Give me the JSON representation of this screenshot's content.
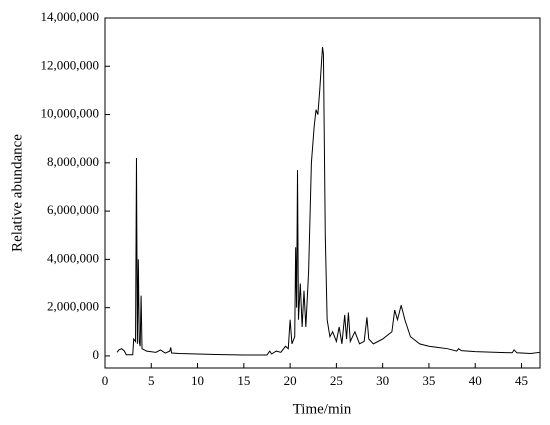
{
  "chart_data": {
    "type": "line",
    "xlabel": "Time/min",
    "ylabel": "Relative abundance",
    "color": "#000000",
    "x": [
      1.3,
      1.5,
      1.8,
      2.1,
      2.3,
      3.0,
      3.1,
      3.3,
      3.4,
      3.5,
      3.6,
      3.7,
      3.8,
      3.9,
      4.0,
      4.5,
      5.5,
      6,
      6.5,
      7,
      7.1,
      7.2,
      8,
      10,
      12,
      15,
      17.5,
      17.8,
      18,
      18.5,
      19,
      19.5,
      19.8,
      20,
      20.2,
      20.5,
      20.6,
      20.7,
      20.8,
      20.9,
      21.1,
      21.3,
      21.5,
      21.7,
      22,
      22.3,
      22.6,
      22.8,
      23,
      23.2,
      23.5,
      23.6,
      23.8,
      24,
      24.3,
      24.6,
      25,
      25.3,
      25.6,
      25.9,
      26.1,
      26.3,
      26.5,
      27,
      27.5,
      28,
      28.3,
      28.5,
      29,
      30,
      31,
      31.3,
      31.6,
      32,
      32.4,
      33,
      34,
      35,
      36,
      37,
      38,
      38.2,
      38.5,
      40,
      42,
      44,
      44.2,
      44.5,
      46,
      47
    ],
    "values": [
      150000,
      250000,
      300000,
      200000,
      50000,
      50000,
      700000,
      600000,
      8200000,
      500000,
      4000000,
      600000,
      400000,
      2500000,
      300000,
      200000,
      150000,
      250000,
      120000,
      200000,
      350000,
      120000,
      100000,
      80000,
      60000,
      40000,
      40000,
      200000,
      80000,
      200000,
      150000,
      400000,
      300000,
      1500000,
      500000,
      800000,
      4500000,
      2000000,
      7700000,
      1500000,
      3000000,
      1200000,
      2700000,
      1200000,
      3500000,
      8000000,
      9500000,
      10200000,
      10000000,
      11000000,
      12800000,
      12500000,
      5000000,
      1500000,
      800000,
      1000000,
      600000,
      1200000,
      500000,
      1700000,
      700000,
      1800000,
      600000,
      1000000,
      500000,
      600000,
      1600000,
      700000,
      500000,
      700000,
      1000000,
      1900000,
      1500000,
      2100000,
      1500000,
      800000,
      500000,
      400000,
      350000,
      300000,
      200000,
      300000,
      220000,
      180000,
      150000,
      130000,
      250000,
      130000,
      100000,
      150000
    ],
    "xlim": [
      0,
      47
    ],
    "xticks": [
      0,
      5,
      10,
      15,
      20,
      25,
      30,
      35,
      40,
      45
    ],
    "ylim": [
      -500000,
      14000000
    ],
    "yticks": [
      0,
      {
        "value": 2000000,
        "label": "2,000,000"
      },
      {
        "value": 4000000,
        "label": "4,000,000"
      },
      {
        "value": 6000000,
        "label": "6,000,000"
      },
      {
        "value": 8000000,
        "label": "8,000,000"
      },
      {
        "value": 10000000,
        "label": "10,000,000"
      },
      {
        "value": 12000000,
        "label": "12,000,000"
      },
      {
        "value": 14000000,
        "label": "14,000,000"
      }
    ]
  }
}
